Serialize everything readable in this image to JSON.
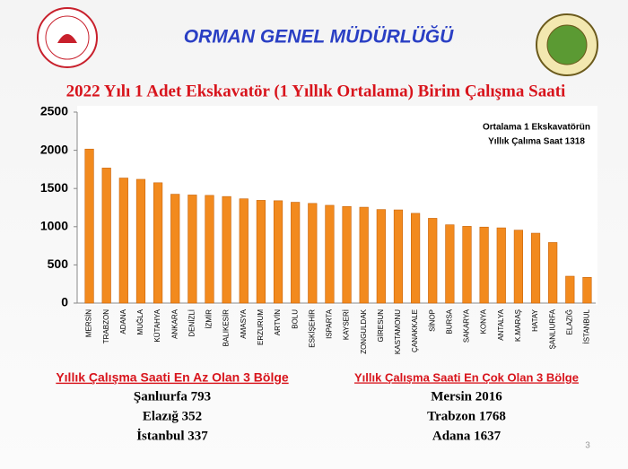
{
  "header": {
    "title": "ORMAN GENEL MÜDÜRLÜĞÜ"
  },
  "chart_data": {
    "type": "bar",
    "title": "2022 Yılı 1 Adet Ekskavatör (1 Yıllık Ortalama) Birim Çalışma Saati",
    "annotation": [
      "Ortalama 1 Ekskavatörün",
      "Yıllık Çalıma  Saat 1318"
    ],
    "categories": [
      "MERSİN",
      "TRABZON",
      "ADANA",
      "MUĞLA",
      "KÜTAHYA",
      "ANKARA",
      "DENİZLİ",
      "İZMİR",
      "BALIKESİR",
      "AMASYA",
      "ERZURUM",
      "ARTVİN",
      "BOLU",
      "ESKİŞEHİR",
      "ISPARTA",
      "KAYSERİ",
      "ZONGULDAK",
      "GİRESUN",
      "KASTAMONU",
      "ÇANAKKALE",
      "SİNOP",
      "BURSA",
      "SAKARYA",
      "KONYA",
      "ANTALYA",
      "K.MARAŞ",
      "HATAY",
      "ŞANLIURFA",
      "ELAZIĞ",
      "İSTANBUL"
    ],
    "values": [
      2016,
      1768,
      1637,
      1620,
      1575,
      1425,
      1415,
      1410,
      1395,
      1365,
      1345,
      1340,
      1320,
      1305,
      1280,
      1265,
      1255,
      1225,
      1220,
      1175,
      1110,
      1025,
      1005,
      995,
      985,
      955,
      915,
      793,
      352,
      337
    ],
    "color": "#f28a1e",
    "ylim": [
      0,
      2500
    ],
    "yticks": [
      0,
      500,
      1000,
      1500,
      2000,
      2500
    ],
    "grid": false
  },
  "summary": {
    "lowest": {
      "heading": "Yıllık Çalışma Saati En Az Olan 3 Bölge",
      "items": [
        "Şanlıurfa 793",
        "Elazığ 352",
        "İstanbul 337"
      ]
    },
    "highest": {
      "heading": "Yıllık Çalışma Saati En Çok Olan 3 Bölge",
      "items": [
        "Mersin 2016",
        "Trabzon 1768",
        "Adana 1637"
      ]
    }
  },
  "page_number": "3"
}
